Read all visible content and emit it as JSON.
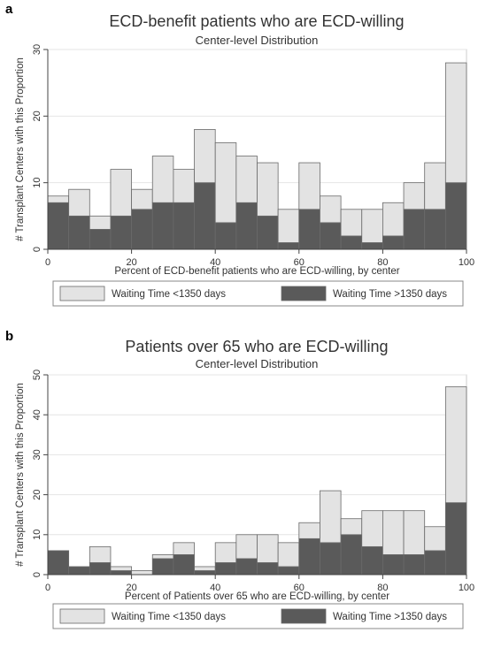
{
  "charts": [
    {
      "panel_label": "a",
      "chart_data": {
        "type": "bar",
        "stacked": true,
        "title": "ECD-benefit patients who are ECD-willing",
        "subtitle": "Center-level Distribution",
        "xlabel": "Percent of ECD-benefit patients who are ECD-willing, by center",
        "ylabel": "# Transplant Centers with this Proportion",
        "xlim": [
          0,
          100
        ],
        "ylim": [
          0,
          30
        ],
        "xticks": [
          "0",
          "20",
          "40",
          "60",
          "80",
          "100"
        ],
        "yticks": [
          "0",
          "10",
          "20",
          "30"
        ],
        "bin_width": 5,
        "bin_centers": [
          2.5,
          7.5,
          12.5,
          17.5,
          22.5,
          27.5,
          32.5,
          37.5,
          42.5,
          47.5,
          52.5,
          57.5,
          62.5,
          67.5,
          72.5,
          77.5,
          82.5,
          87.5,
          92.5,
          97.5
        ],
        "grid": true,
        "legend_position": "bottom",
        "series": [
          {
            "name": "Waiting Time >1350 days",
            "color": "#5a5a5a",
            "values": [
              7,
              5,
              3,
              5,
              6,
              7,
              7,
              10,
              4,
              7,
              5,
              1,
              6,
              4,
              2,
              1,
              2,
              6,
              6,
              10
            ]
          },
          {
            "name": "Waiting Time <1350 days",
            "color": "#e3e3e3",
            "values": [
              1,
              4,
              2,
              7,
              3,
              7,
              5,
              8,
              12,
              7,
              8,
              5,
              7,
              4,
              4,
              5,
              5,
              4,
              7,
              18
            ]
          }
        ],
        "legend_order": [
          1,
          0
        ]
      }
    },
    {
      "panel_label": "b",
      "chart_data": {
        "type": "bar",
        "stacked": true,
        "title": "Patients over 65 who are ECD-willing",
        "subtitle": "Center-level Distribution",
        "xlabel": "Percent of Patients over 65 who are ECD-willing, by center",
        "ylabel": "# Transplant Centers with this Proportion",
        "xlim": [
          0,
          100
        ],
        "ylim": [
          0,
          50
        ],
        "xticks": [
          "0",
          "20",
          "40",
          "60",
          "80",
          "100"
        ],
        "yticks": [
          "0",
          "10",
          "20",
          "30",
          "40",
          "50"
        ],
        "bin_width": 5,
        "bin_centers": [
          2.5,
          7.5,
          12.5,
          17.5,
          22.5,
          27.5,
          32.5,
          37.5,
          42.5,
          47.5,
          52.5,
          57.5,
          62.5,
          67.5,
          72.5,
          77.5,
          82.5,
          87.5,
          92.5,
          97.5
        ],
        "grid": true,
        "legend_position": "bottom",
        "series": [
          {
            "name": "Waiting Time >1350 days",
            "color": "#5a5a5a",
            "values": [
              6,
              2,
              3,
              1,
              0,
              4,
              5,
              1,
              3,
              4,
              3,
              2,
              9,
              8,
              10,
              7,
              5,
              5,
              6,
              18
            ]
          },
          {
            "name": "Waiting Time <1350 days",
            "color": "#e3e3e3",
            "values": [
              0,
              0,
              4,
              1,
              1,
              1,
              3,
              1,
              5,
              6,
              7,
              6,
              4,
              13,
              4,
              9,
              11,
              11,
              6,
              29
            ]
          }
        ],
        "legend_order": [
          1,
          0
        ]
      }
    }
  ]
}
